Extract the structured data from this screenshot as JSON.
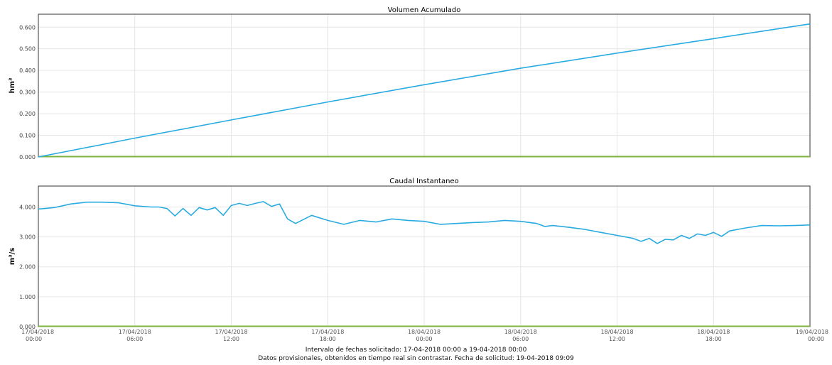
{
  "footer": {
    "interval": "Intervalo de fechas solicitado: 17-04-2018 00:00 a 19-04-2018 00:00",
    "note": "Datos provisionales, obtenidos en tiempo real sin contrastar. Fecha de solicitud: 19-04-2018 09:09"
  },
  "chart_data": [
    {
      "type": "line",
      "title": "Volumen Acumulado",
      "xlabel": "",
      "ylabel": "hm³",
      "ylim": [
        0,
        0.66
      ],
      "yticks": [
        "0.000",
        "0.100",
        "0.200",
        "0.300",
        "0.400",
        "0.500",
        "0.600"
      ],
      "grid": true,
      "series_color": "#29abe2",
      "baseline_color": "#7cb342",
      "x": [
        0,
        6,
        12,
        18,
        24,
        30,
        36,
        42,
        48
      ],
      "values": [
        0,
        0.087,
        0.171,
        0.254,
        0.334,
        0.41,
        0.48,
        0.547,
        0.615
      ]
    },
    {
      "type": "line",
      "title": "Caudal Instantaneo",
      "xlabel": "",
      "ylabel": "m³/s",
      "ylim": [
        0,
        4.7
      ],
      "yticks": [
        "0.000",
        "1.000",
        "2.000",
        "3.000",
        "4.000"
      ],
      "grid": true,
      "series_color": "#29abe2",
      "baseline_color": "#7cb342",
      "x": [
        0,
        1,
        2,
        3,
        4,
        5,
        6,
        7,
        7.5,
        8,
        8.5,
        9,
        9.5,
        10,
        10.5,
        11,
        11.5,
        12,
        12.5,
        13,
        13.5,
        14,
        14.5,
        15,
        15.5,
        16,
        17,
        18,
        19,
        20,
        21,
        22,
        23,
        24,
        25,
        26,
        27,
        28,
        29,
        30,
        31,
        31.5,
        32,
        33,
        34,
        35,
        36,
        37,
        37.5,
        38,
        38.5,
        39,
        39.5,
        40,
        40.5,
        41,
        41.5,
        42,
        42.5,
        43,
        44,
        45,
        46,
        47,
        48
      ],
      "values": [
        3.93,
        3.98,
        4.1,
        4.16,
        4.16,
        4.14,
        4.04,
        4.0,
        4.0,
        3.95,
        3.7,
        3.95,
        3.72,
        3.98,
        3.9,
        3.98,
        3.72,
        4.05,
        4.12,
        4.05,
        4.12,
        4.18,
        4.02,
        4.1,
        3.6,
        3.45,
        3.72,
        3.55,
        3.42,
        3.55,
        3.5,
        3.6,
        3.55,
        3.52,
        3.42,
        3.45,
        3.48,
        3.5,
        3.55,
        3.52,
        3.45,
        3.35,
        3.38,
        3.32,
        3.25,
        3.15,
        3.05,
        2.95,
        2.85,
        2.95,
        2.78,
        2.92,
        2.9,
        3.05,
        2.95,
        3.1,
        3.05,
        3.15,
        3.02,
        3.2,
        3.3,
        3.38,
        3.37,
        3.38,
        3.4
      ]
    }
  ],
  "xaxis": {
    "ticks": [
      {
        "x": 0,
        "date": "17/04/2018",
        "time": "00:00"
      },
      {
        "x": 6,
        "date": "17/04/2018",
        "time": "06:00"
      },
      {
        "x": 12,
        "date": "17/04/2018",
        "time": "12:00"
      },
      {
        "x": 18,
        "date": "17/04/2018",
        "time": "18:00"
      },
      {
        "x": 24,
        "date": "18/04/2018",
        "time": "00:00"
      },
      {
        "x": 30,
        "date": "18/04/2018",
        "time": "06:00"
      },
      {
        "x": 36,
        "date": "18/04/2018",
        "time": "12:00"
      },
      {
        "x": 42,
        "date": "18/04/2018",
        "time": "18:00"
      },
      {
        "x": 48,
        "date": "19/04/2018",
        "time": "00:00"
      }
    ]
  }
}
